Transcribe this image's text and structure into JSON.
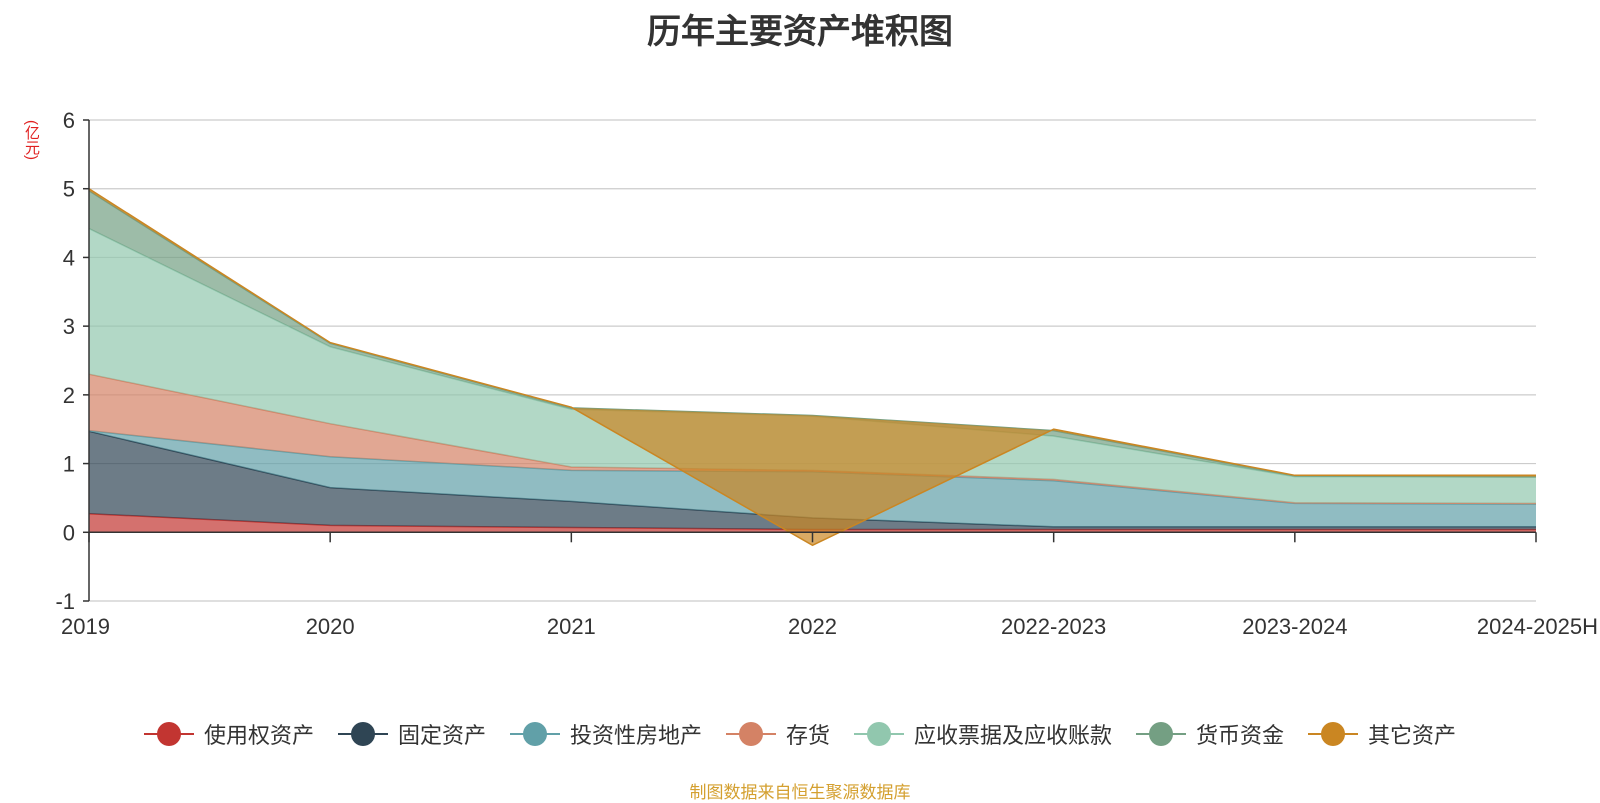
{
  "chart_data": {
    "type": "area",
    "title": "历年主要资产堆积图",
    "unit_label": "(亿元)",
    "categories": [
      "2019",
      "2020",
      "2021",
      "2022",
      "2022-2023",
      "2023-2024",
      "2024-2025H"
    ],
    "ylim": [
      -1,
      6
    ],
    "yticks": [
      -1,
      0,
      1,
      2,
      3,
      4,
      5,
      6
    ],
    "grid": true,
    "legend_position": "bottom",
    "stacked": true,
    "series": [
      {
        "name": "使用权资产",
        "color": "#c23531",
        "values": [
          0.27,
          0.1,
          0.07,
          0.04,
          0.04,
          0.04,
          0.04
        ]
      },
      {
        "name": "固定资产",
        "color": "#2f4554",
        "values": [
          1.2,
          0.55,
          0.38,
          0.17,
          0.04,
          0.04,
          0.04
        ]
      },
      {
        "name": "投资性房地产",
        "color": "#61a0a8",
        "values": [
          0.01,
          0.45,
          0.45,
          0.67,
          0.67,
          0.34,
          0.33
        ]
      },
      {
        "name": "存货",
        "color": "#d48265",
        "values": [
          0.82,
          0.48,
          0.05,
          0.02,
          0.02,
          0.01,
          0.01
        ]
      },
      {
        "name": "应收票据及应收账款",
        "color": "#91c7ae",
        "values": [
          2.12,
          1.12,
          0.84,
          0.79,
          0.63,
          0.38,
          0.38
        ]
      },
      {
        "name": "货币资金",
        "color": "#749f83",
        "values": [
          0.55,
          0.05,
          0.02,
          0.01,
          0.08,
          0.01,
          0.01
        ]
      },
      {
        "name": "其它资产",
        "color": "#ca8622",
        "values": [
          0.03,
          0.01,
          0.01,
          -1.89,
          0.02,
          0.01,
          0.02
        ]
      }
    ]
  },
  "source_text": "制图数据来自恒生聚源数据库"
}
